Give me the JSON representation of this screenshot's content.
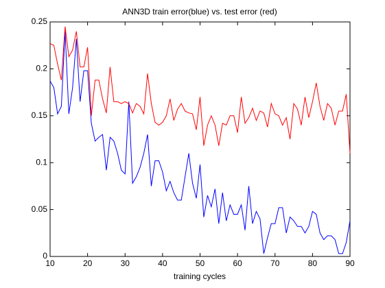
{
  "chart_data": {
    "type": "line",
    "title": "ANN3D train error(blue) vs. test error (red)",
    "x_label": "training cycles",
    "x": [
      10,
      11,
      12,
      13,
      14,
      15,
      16,
      17,
      18,
      19,
      20,
      21,
      22,
      23,
      24,
      25,
      26,
      27,
      28,
      29,
      30,
      31,
      32,
      33,
      34,
      35,
      36,
      37,
      38,
      39,
      40,
      41,
      42,
      43,
      44,
      45,
      46,
      47,
      48,
      49,
      50,
      51,
      52,
      53,
      54,
      55,
      56,
      57,
      58,
      59,
      60,
      61,
      62,
      63,
      64,
      65,
      66,
      67,
      68,
      69,
      70,
      71,
      72,
      73,
      74,
      75,
      76,
      77,
      78,
      79,
      80,
      81,
      82,
      83,
      84,
      85,
      86,
      87,
      88,
      89,
      90
    ],
    "series": [
      {
        "color": "#0000ff",
        "values": [
          0.187,
          0.18,
          0.152,
          0.16,
          0.24,
          0.152,
          0.18,
          0.232,
          0.165,
          0.198,
          0.198,
          0.142,
          0.123,
          0.127,
          0.13,
          0.092,
          0.127,
          0.123,
          0.11,
          0.092,
          0.088,
          0.165,
          0.078,
          0.085,
          0.095,
          0.11,
          0.13,
          0.075,
          0.102,
          0.102,
          0.09,
          0.07,
          0.08,
          0.068,
          0.06,
          0.06,
          0.085,
          0.11,
          0.078,
          0.062,
          0.098,
          0.042,
          0.065,
          0.053,
          0.072,
          0.035,
          0.068,
          0.038,
          0.055,
          0.045,
          0.045,
          0.055,
          0.028,
          0.075,
          0.035,
          0.048,
          0.04,
          0.003,
          0.02,
          0.035,
          0.035,
          0.052,
          0.052,
          0.025,
          0.042,
          0.038,
          0.032,
          0.032,
          0.025,
          0.032,
          0.048,
          0.045,
          0.025,
          0.018,
          0.022,
          0.022,
          0.018,
          0.003,
          0.003,
          0.015,
          0.038
        ]
      },
      {
        "color": "#ff0000",
        "values": [
          0.227,
          0.225,
          0.205,
          0.188,
          0.245,
          0.213,
          0.22,
          0.24,
          0.202,
          0.202,
          0.223,
          0.15,
          0.188,
          0.188,
          0.168,
          0.153,
          0.202,
          0.165,
          0.165,
          0.163,
          0.165,
          0.163,
          0.153,
          0.163,
          0.16,
          0.152,
          0.195,
          0.163,
          0.143,
          0.14,
          0.143,
          0.15,
          0.168,
          0.145,
          0.157,
          0.163,
          0.155,
          0.153,
          0.152,
          0.135,
          0.17,
          0.118,
          0.14,
          0.15,
          0.14,
          0.118,
          0.142,
          0.14,
          0.15,
          0.15,
          0.132,
          0.17,
          0.142,
          0.148,
          0.158,
          0.145,
          0.155,
          0.153,
          0.138,
          0.163,
          0.152,
          0.15,
          0.14,
          0.148,
          0.125,
          0.163,
          0.157,
          0.14,
          0.17,
          0.148,
          0.165,
          0.185,
          0.16,
          0.145,
          0.163,
          0.158,
          0.14,
          0.155,
          0.155,
          0.173,
          0.11
        ]
      }
    ],
    "xlim": [
      10,
      90
    ],
    "xticks": [
      10,
      20,
      30,
      40,
      50,
      60,
      70,
      80,
      90
    ],
    "ylim": [
      0,
      0.25
    ],
    "yticks": [
      0,
      0.05,
      0.1,
      0.15,
      0.2,
      0.25
    ]
  }
}
